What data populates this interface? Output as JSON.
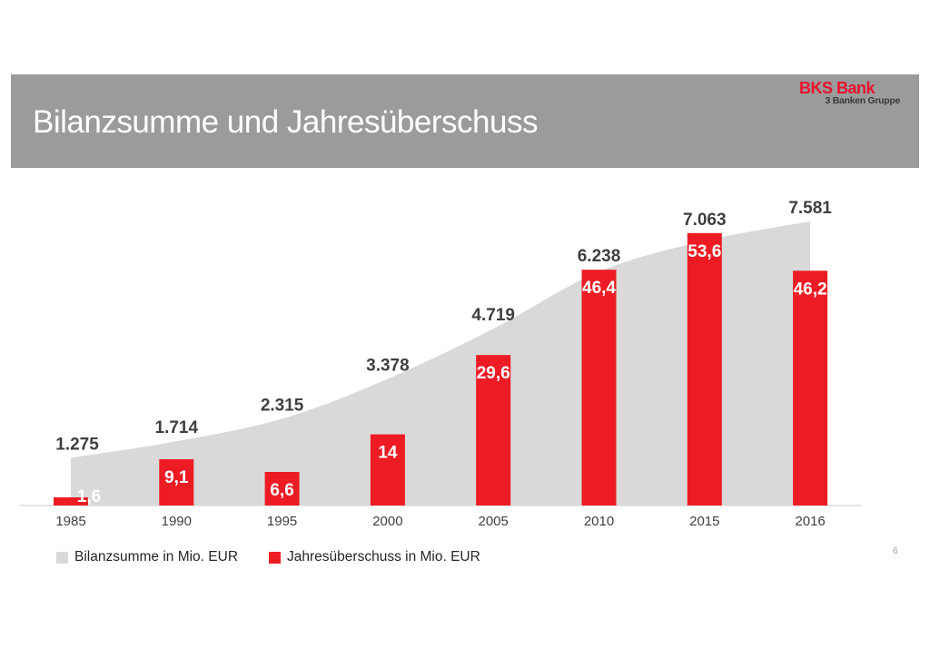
{
  "slide": {
    "title": "Bilanzsumme und Jahresüberschuss",
    "page_number": "6",
    "logo": {
      "brand": "BKS Bank",
      "group": "3 Banken Gruppe"
    }
  },
  "legend": [
    {
      "label": "Bilanzsumme in Mio. EUR",
      "color": "#d9d9d9"
    },
    {
      "label": "Jahresüberschuss in Mio. EUR",
      "color": "#ed1c24"
    }
  ],
  "colors": {
    "header_band": "#9b9b9b",
    "title_text": "#ffffff",
    "brand_red": "#e8112d",
    "area_fill": "#d9d9d9",
    "bar_fill": "#ed1c24",
    "area_label": "#3f3f3f",
    "bar_label": "#ffffff",
    "axis_line": "#dcdcdc",
    "axis_label": "#404040"
  },
  "chart_data": {
    "type": "area+bar combo",
    "title": "Bilanzsumme und Jahresüberschuss",
    "categories": [
      "1985",
      "1990",
      "1995",
      "2000",
      "2005",
      "2010",
      "2015",
      "2016"
    ],
    "series": [
      {
        "name": "Bilanzsumme in Mio. EUR",
        "type": "area",
        "values": [
          1275,
          1714,
          2315,
          3378,
          4719,
          6238,
          7063,
          7581
        ],
        "labels": [
          "1.275",
          "1.714",
          "2.315",
          "3.378",
          "4.719",
          "6.238",
          "7.063",
          "7.581"
        ],
        "color": "#d9d9d9"
      },
      {
        "name": "Jahresüberschuss in Mio. EUR",
        "type": "bar",
        "values": [
          1.6,
          9.1,
          6.6,
          14,
          29.6,
          46.4,
          53.6,
          46.2
        ],
        "labels": [
          "1,6",
          "9,1",
          "6,6",
          "14",
          "29,6",
          "46,4",
          "53,6",
          "46,2"
        ],
        "color": "#ed1c24"
      }
    ],
    "axis": {
      "x_labels_visible": true,
      "y_axis_visible": false,
      "gridlines": false,
      "legend_position": "bottom",
      "value_labels": "shown on both series"
    }
  }
}
